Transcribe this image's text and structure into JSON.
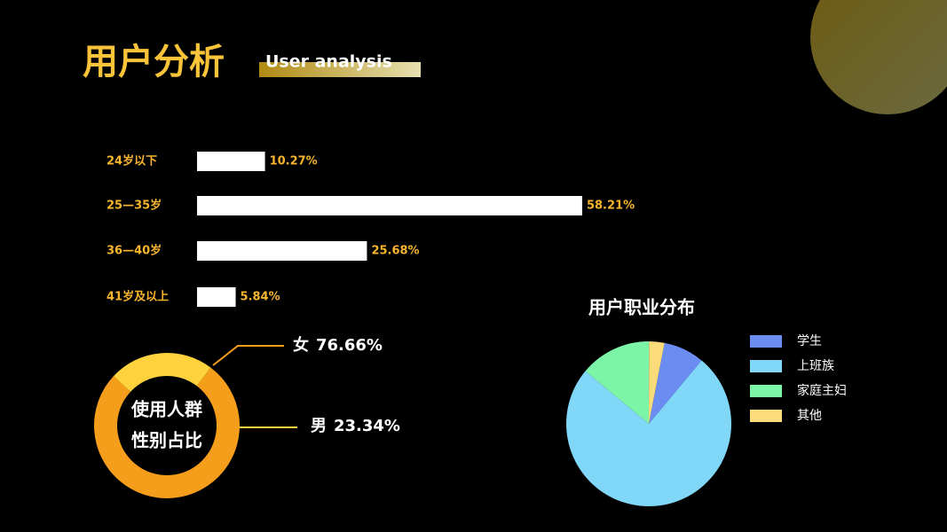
{
  "header": {
    "title": "用户分析",
    "subtitle": "User analysis"
  },
  "chart_data": [
    {
      "type": "bar",
      "orientation": "horizontal",
      "categories": [
        "24岁以下",
        "25—35岁",
        "36—40岁",
        "41岁及以上"
      ],
      "values": [
        10.27,
        58.21,
        25.68,
        5.84
      ],
      "value_labels": [
        "10.27%",
        "58.21%",
        "25.68%",
        "5.84%"
      ],
      "color": "#ffffff",
      "label_color": "#f7b52c"
    },
    {
      "type": "donut",
      "title": [
        "使用人群",
        "性别占比"
      ],
      "categories": [
        "女",
        "男"
      ],
      "values": [
        76.66,
        23.34
      ],
      "value_labels": [
        "76.66%",
        "23.34%"
      ],
      "colors": [
        "#f59e1b",
        "#fdd23c"
      ]
    },
    {
      "type": "pie",
      "title": "用户职业分布",
      "categories": [
        "学生",
        "上班族",
        "家庭主妇",
        "其他"
      ],
      "values": [
        8,
        75,
        14,
        3
      ],
      "colors": [
        "#6b8cf0",
        "#80d7f8",
        "#7df5a9",
        "#fcdc7a"
      ],
      "legend": "right"
    }
  ]
}
